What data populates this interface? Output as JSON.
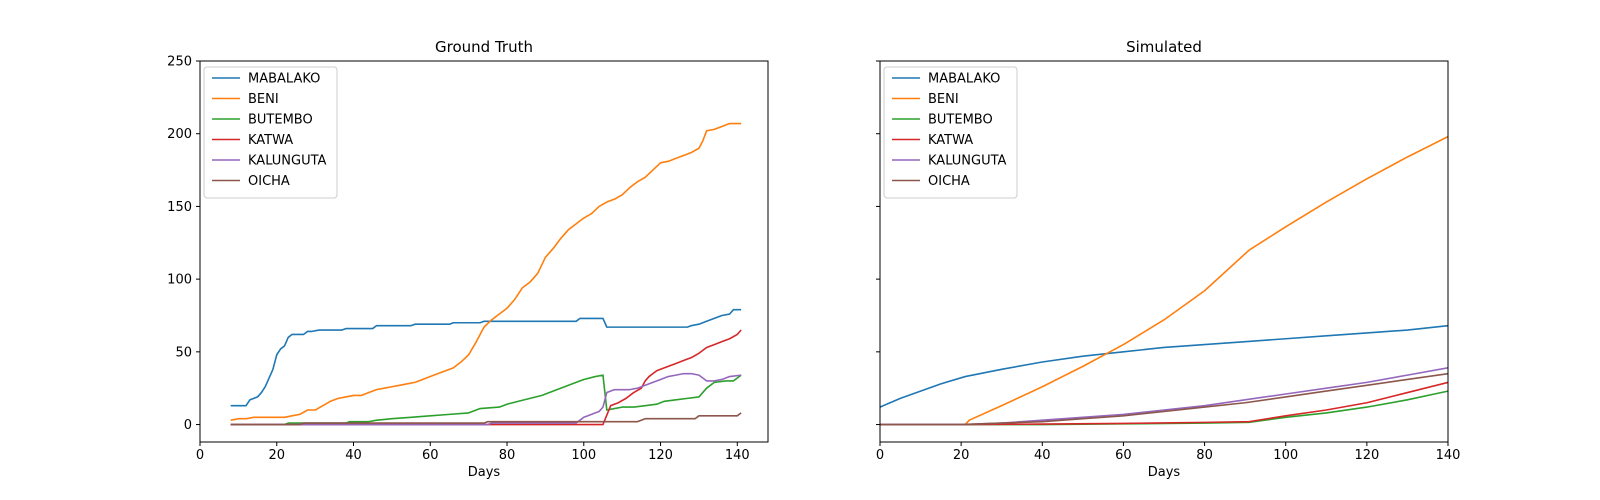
{
  "chart_data": [
    {
      "type": "line",
      "title": "Ground Truth",
      "xlabel": "Days",
      "ylabel": "",
      "xlim": [
        0,
        148
      ],
      "ylim": [
        -12,
        250
      ],
      "xticks": [
        0,
        20,
        40,
        60,
        80,
        100,
        120,
        140
      ],
      "yticks": [
        0,
        50,
        100,
        150,
        200,
        250
      ],
      "legend": "top-left",
      "grid": false,
      "series": [
        {
          "name": "MABALAKO",
          "color": "#1f77b4",
          "x": [
            8,
            12,
            13,
            15,
            16,
            17,
            18,
            19,
            20,
            21,
            22,
            23,
            24,
            27,
            28,
            29,
            31,
            33,
            34,
            37,
            38,
            42,
            45,
            46,
            51,
            52,
            55,
            56,
            65,
            66,
            72,
            73,
            74,
            85,
            98,
            99,
            104,
            105,
            106,
            127,
            128,
            130,
            131,
            132,
            134,
            136,
            138,
            139,
            141
          ],
          "y": [
            13,
            13,
            17,
            19,
            22,
            26,
            32,
            38,
            48,
            52,
            54,
            60,
            62,
            62,
            64,
            64,
            65,
            65,
            65,
            65,
            66,
            66,
            66,
            68,
            68,
            68,
            68,
            69,
            69,
            70,
            70,
            70,
            71,
            71,
            71,
            73,
            73,
            73,
            67,
            67,
            68,
            69,
            70,
            71,
            73,
            75,
            76,
            79,
            79
          ]
        },
        {
          "name": "BENI",
          "color": "#ff7f0e",
          "x": [
            8,
            10,
            12,
            14,
            18,
            20,
            22,
            24,
            26,
            28,
            30,
            32,
            34,
            36,
            38,
            40,
            42,
            44,
            46,
            48,
            50,
            52,
            54,
            56,
            58,
            60,
            62,
            64,
            66,
            68,
            70,
            72,
            74,
            76,
            78,
            80,
            82,
            84,
            86,
            88,
            90,
            92,
            94,
            96,
            98,
            100,
            102,
            104,
            106,
            108,
            110,
            112,
            114,
            116,
            118,
            120,
            122,
            124,
            126,
            128,
            130,
            131,
            132,
            134,
            136,
            138,
            141
          ],
          "y": [
            3,
            4,
            4,
            5,
            5,
            5,
            5,
            6,
            7,
            10,
            10,
            13,
            16,
            18,
            19,
            20,
            20,
            22,
            24,
            25,
            26,
            27,
            28,
            29,
            31,
            33,
            35,
            37,
            39,
            43,
            48,
            57,
            67,
            72,
            76,
            80,
            86,
            94,
            98,
            104,
            115,
            121,
            128,
            134,
            138,
            142,
            145,
            150,
            153,
            155,
            158,
            163,
            167,
            170,
            175,
            180,
            181,
            183,
            185,
            187,
            190,
            195,
            202,
            203,
            205,
            207,
            207
          ]
        },
        {
          "name": "BUTEMBO",
          "color": "#2ca02c",
          "x": [
            8,
            22,
            23,
            38,
            39,
            44,
            46,
            50,
            55,
            60,
            65,
            70,
            73,
            78,
            80,
            83,
            86,
            89,
            92,
            95,
            98,
            100,
            103,
            105,
            106,
            108,
            110,
            113,
            116,
            119,
            121,
            124,
            127,
            130,
            132,
            134,
            137,
            139,
            141
          ],
          "y": [
            0,
            0,
            1,
            1,
            2,
            2,
            3,
            4,
            5,
            6,
            7,
            8,
            11,
            12,
            14,
            16,
            18,
            20,
            23,
            26,
            29,
            31,
            33,
            34,
            10,
            11,
            12,
            12,
            13,
            14,
            16,
            17,
            18,
            19,
            25,
            29,
            30,
            30,
            34
          ]
        },
        {
          "name": "KATWA",
          "color": "#d62728",
          "x": [
            8,
            100,
            105,
            107,
            109,
            111,
            113,
            115,
            116,
            117,
            118,
            119,
            120,
            122,
            124,
            126,
            128,
            130,
            132,
            134,
            136,
            138,
            140,
            141
          ],
          "y": [
            0,
            0,
            0,
            13,
            15,
            18,
            22,
            25,
            30,
            33,
            35,
            37,
            38,
            40,
            42,
            44,
            46,
            49,
            53,
            55,
            57,
            59,
            62,
            65
          ]
        },
        {
          "name": "KALUNGUTA",
          "color": "#9467bd",
          "x": [
            8,
            75,
            76,
            98,
            99,
            100,
            101,
            102,
            103,
            104,
            105,
            106,
            108,
            112,
            114,
            116,
            118,
            120,
            122,
            124,
            126,
            128,
            130,
            132,
            134,
            136,
            138,
            141
          ],
          "y": [
            0,
            0,
            1,
            1,
            3,
            5,
            6,
            7,
            8,
            9,
            12,
            22,
            24,
            24,
            25,
            27,
            29,
            31,
            33,
            34,
            35,
            35,
            34,
            30,
            30,
            31,
            33,
            34
          ]
        },
        {
          "name": "OICHA",
          "color": "#8c564b",
          "x": [
            8,
            26,
            27,
            74,
            75,
            114,
            116,
            129,
            130,
            140,
            141
          ],
          "y": [
            0,
            0,
            1,
            1,
            2,
            2,
            4,
            4,
            6,
            6,
            8
          ]
        }
      ]
    },
    {
      "type": "line",
      "title": "Simulated",
      "xlabel": "Days",
      "ylabel": "",
      "xlim": [
        0,
        140
      ],
      "ylim": [
        -12,
        250
      ],
      "xticks": [
        0,
        20,
        40,
        60,
        80,
        100,
        120,
        140
      ],
      "yticks": [
        0,
        50,
        100,
        150,
        200,
        250
      ],
      "legend": "top-left",
      "grid": false,
      "series": [
        {
          "name": "MABALAKO",
          "color": "#1f77b4",
          "x": [
            0,
            5,
            10,
            15,
            21,
            30,
            40,
            50,
            60,
            70,
            80,
            90,
            100,
            110,
            120,
            130,
            140
          ],
          "y": [
            12,
            18,
            23,
            28,
            33,
            38,
            43,
            47,
            50,
            53,
            55,
            57,
            59,
            61,
            63,
            65,
            68
          ]
        },
        {
          "name": "BENI",
          "color": "#ff7f0e",
          "x": [
            21,
            22,
            30,
            40,
            50,
            60,
            70,
            80,
            91,
            100,
            110,
            120,
            130,
            140
          ],
          "y": [
            0,
            3,
            13,
            26,
            40,
            55,
            72,
            92,
            120,
            136,
            153,
            169,
            184,
            198
          ]
        },
        {
          "name": "BUTEMBO",
          "color": "#2ca02c",
          "x": [
            0,
            20,
            40,
            60,
            80,
            91,
            100,
            110,
            120,
            130,
            140
          ],
          "y": [
            0,
            0,
            0,
            0.5,
            1,
            1.5,
            5,
            8,
            12,
            17,
            23
          ]
        },
        {
          "name": "KATWA",
          "color": "#d62728",
          "x": [
            0,
            20,
            40,
            60,
            80,
            91,
            100,
            110,
            120,
            130,
            140
          ],
          "y": [
            0,
            0,
            0.3,
            0.8,
            1.5,
            2,
            6,
            10,
            15,
            22,
            29
          ]
        },
        {
          "name": "KALUNGUTA",
          "color": "#9467bd",
          "x": [
            0,
            20,
            30,
            40,
            50,
            60,
            70,
            80,
            90,
            100,
            110,
            120,
            130,
            140
          ],
          "y": [
            0,
            0,
            1,
            3,
            5,
            7,
            10,
            13,
            17,
            21,
            25,
            29,
            34,
            39
          ]
        },
        {
          "name": "OICHA",
          "color": "#8c564b",
          "x": [
            0,
            20,
            30,
            40,
            50,
            60,
            70,
            80,
            90,
            100,
            110,
            120,
            130,
            140
          ],
          "y": [
            0,
            0,
            1,
            2,
            4,
            6,
            9,
            12,
            15,
            19,
            23,
            27,
            31,
            35
          ]
        }
      ]
    }
  ]
}
